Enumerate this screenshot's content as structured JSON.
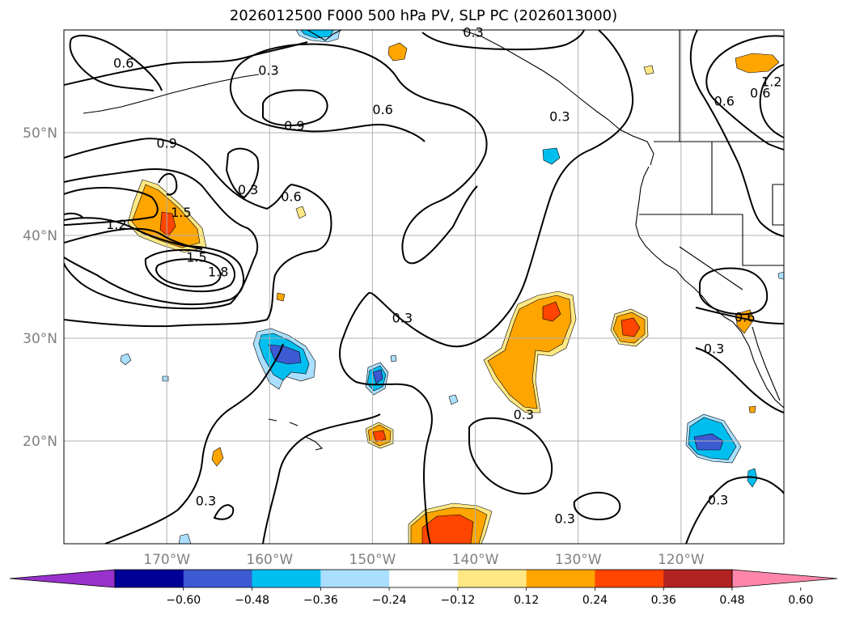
{
  "title": "2026012500 F000 500 hPa PV, SLP PC (2026013000)",
  "map": {
    "lon_range": [
      -180,
      -110
    ],
    "lat_range": [
      10,
      60
    ],
    "lon_ticks": [
      {
        "value": -170,
        "label": "170°W"
      },
      {
        "value": -160,
        "label": "160°W"
      },
      {
        "value": -150,
        "label": "150°W"
      },
      {
        "value": -140,
        "label": "140°W"
      },
      {
        "value": -130,
        "label": "130°W"
      },
      {
        "value": -120,
        "label": "120°W"
      }
    ],
    "lat_ticks": [
      {
        "value": 50,
        "label": "50°N"
      },
      {
        "value": 40,
        "label": "40°N"
      },
      {
        "value": 30,
        "label": "30°N"
      },
      {
        "value": 20,
        "label": "20°N"
      }
    ],
    "grid": true,
    "contour_labels": [
      {
        "text": "0.6",
        "lon": -174.2,
        "lat": 56.8
      },
      {
        "text": "0.3",
        "lon": -160.1,
        "lat": 56.1
      },
      {
        "text": "0.3",
        "lon": -140.2,
        "lat": 59.8
      },
      {
        "text": "0.9",
        "lon": -157.6,
        "lat": 50.7
      },
      {
        "text": "0.6",
        "lon": -149.0,
        "lat": 52.3
      },
      {
        "text": "0.9",
        "lon": -170.0,
        "lat": 49.0
      },
      {
        "text": "0.3",
        "lon": -162.1,
        "lat": 44.5
      },
      {
        "text": "0.6",
        "lon": -157.9,
        "lat": 43.8
      },
      {
        "text": "1.5",
        "lon": -168.6,
        "lat": 42.3
      },
      {
        "text": "1.2",
        "lon": -174.9,
        "lat": 41.1
      },
      {
        "text": "1.5",
        "lon": -167.1,
        "lat": 37.9
      },
      {
        "text": "1.8",
        "lon": -165.0,
        "lat": 36.5
      },
      {
        "text": "0.3",
        "lon": -147.1,
        "lat": 32.0
      },
      {
        "text": "0.3",
        "lon": -131.8,
        "lat": 51.6
      },
      {
        "text": "0.6",
        "lon": -115.8,
        "lat": 53.1
      },
      {
        "text": "0.6",
        "lon": -112.3,
        "lat": 53.9
      },
      {
        "text": "1.2",
        "lon": -111.2,
        "lat": 55.0
      },
      {
        "text": "0.6",
        "lon": -113.8,
        "lat": 32.1
      },
      {
        "text": "0.3",
        "lon": -116.8,
        "lat": 29.0
      },
      {
        "text": "0.3",
        "lon": -135.3,
        "lat": 22.6
      },
      {
        "text": "0.3",
        "lon": -116.4,
        "lat": 14.3
      },
      {
        "text": "0.3",
        "lon": -131.3,
        "lat": 12.5
      },
      {
        "text": "0.3",
        "lon": -166.2,
        "lat": 14.2
      }
    ]
  },
  "colorbar": {
    "colors": [
      "#9932cc",
      "#000096",
      "#3c5ad2",
      "#00bff0",
      "#aadfff",
      "#ffffff",
      "#ffe884",
      "#ffa500",
      "#ff4500",
      "#b22222",
      "#ff86aa"
    ],
    "levels": [
      "−0.60",
      "−0.48",
      "−0.36",
      "−0.24",
      "−0.12",
      "0.12",
      "0.24",
      "0.36",
      "0.48",
      "0.60"
    ]
  }
}
